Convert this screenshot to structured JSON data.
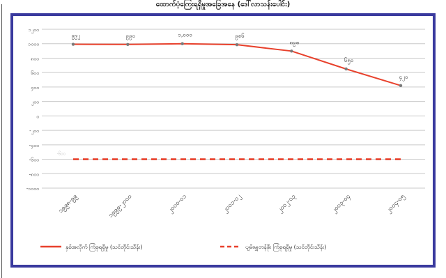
{
  "header": {
    "title": "ထောက်ပံ့ကြေးရရှိမှုအခြေအနေ (ဒေါ်လာသန်းပေါင်း)"
  },
  "chart_data": {
    "type": "line",
    "title": "ထောက်ပံ့ကြေးရရှိမှုအခြေအနေ (ဒေါ်လာသန်းပေါင်း)",
    "categories": [
      "၁၉၉၈-၉၉",
      "၁၉၉၉-၂၀၀၀",
      "၂၀၀၀-၀၁",
      "၂၀၀၁-၀၂",
      "၂၀၀၂-၀၃",
      "၂၀၀၃-၀၄",
      "၂၀၀၄-၀၅"
    ],
    "y_ticks": [
      "၁၂၀၀",
      "၁၀၀၀",
      "၈၀၀",
      "၆၀၀",
      "၄၀၀",
      "၂၀၀",
      "၀",
      "-၂၀၀",
      "-၄၀၀",
      "-၆၀၀",
      "-၈၀၀",
      "-၁၀၀၀"
    ],
    "ylim": [
      -1000,
      1200
    ],
    "grid": true,
    "legend_position": "bottom",
    "series": [
      {
        "name": "နှစ်အလိုက် ကြံစုရရှိမှု (သင်တိုင်းသိန်း)",
        "color": "#e8412c",
        "style": "solid",
        "values": [
          992,
          990,
          1000,
          986,
          898,
          650,
          420
        ],
        "value_labels": [
          "၉၉၂",
          "၉၉၀",
          "၁,၀၀၀",
          "၉၈၆",
          "၈၉၈",
          "၆၅၀",
          "၄၂၀"
        ],
        "show_labels": true
      },
      {
        "name": "ပျမ်းမျှတန်ဖိုး ကြံစုရရှိမှု (သင်တိုင်းသိန်း)",
        "color": "#e8412c",
        "style": "dashed",
        "values": [
          -600,
          -600,
          -600,
          -600,
          -600,
          -600,
          -600
        ],
        "value_labels": [
          "-၆၀၀"
        ],
        "show_labels": false
      }
    ]
  }
}
